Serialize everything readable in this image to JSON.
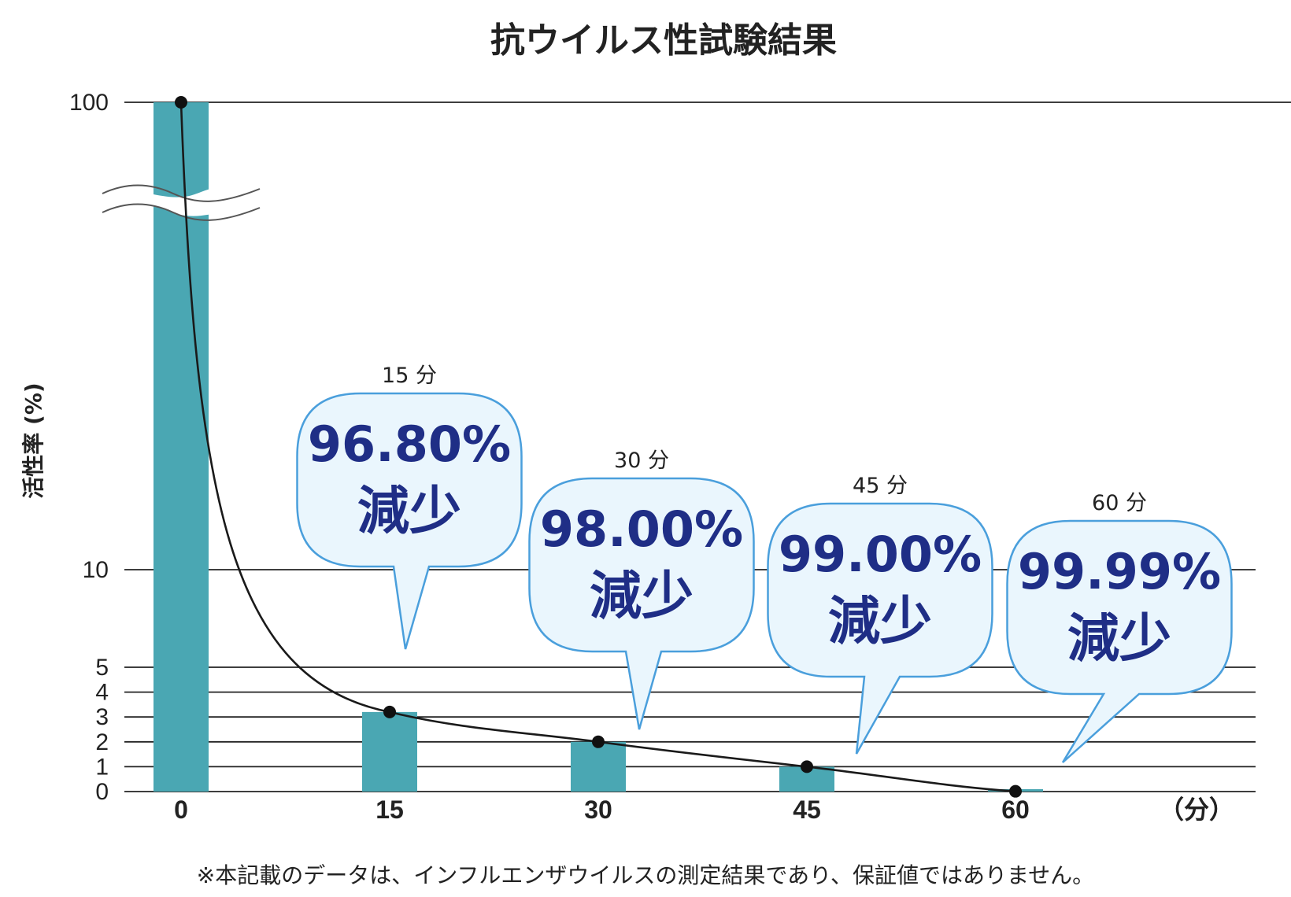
{
  "chart_data": {
    "type": "bar",
    "title": "抗ウイルス性試験結果",
    "ylabel": "活性率 (%)",
    "x_unit_label": "（分）",
    "categories": [
      "0",
      "15",
      "30",
      "45",
      "60"
    ],
    "values": [
      100,
      3.2,
      2.0,
      1.0,
      0.01
    ],
    "y_ticks": [
      "100",
      "10",
      "5",
      "4",
      "3",
      "2",
      "1",
      "0"
    ],
    "axis_break": true,
    "colors": {
      "bar": "#4aa7b3",
      "line": "#1a1a1a",
      "bubble_fill": "#eaf6fd",
      "bubble_stroke": "#4a9fdc",
      "text_accent": "#1f2e86"
    },
    "annotations": [
      {
        "x": "15",
        "time": "15 分",
        "percent": "96.80%",
        "label": "減少"
      },
      {
        "x": "30",
        "time": "30 分",
        "percent": "98.00%",
        "label": "減少"
      },
      {
        "x": "45",
        "time": "45 分",
        "percent": "99.00%",
        "label": "減少"
      },
      {
        "x": "60",
        "time": "60 分",
        "percent": "99.99%",
        "label": "減少"
      }
    ],
    "note": "※本記載のデータは、インフルエンザウイルスの測定結果であり、保証値ではありません。"
  }
}
